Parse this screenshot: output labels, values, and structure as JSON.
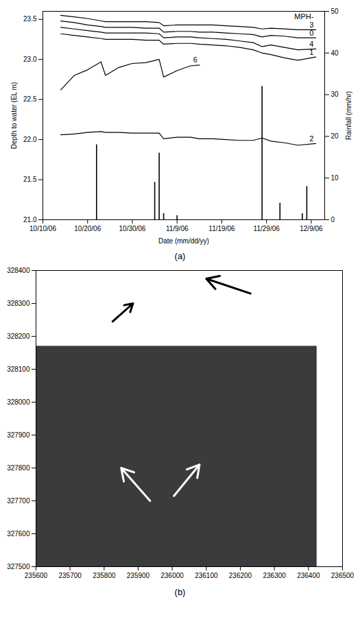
{
  "chart_data": [
    {
      "type": "line",
      "label": "(a)",
      "xlabel": "Date (mm/dd/yy)",
      "ylabel": "Depth to water (EL m)",
      "y2label": "Rainfall (mm/hr)",
      "annotations": [
        "MPH-"
      ],
      "x": [
        "2006-10-14",
        "2006-10-17",
        "2006-10-20",
        "2006-10-23",
        "2006-10-24",
        "2006-10-27",
        "2006-10-30",
        "2006-11-02",
        "2006-11-05",
        "2006-11-06",
        "2006-11-09",
        "2006-11-12",
        "2006-11-14",
        "2006-11-17",
        "2006-11-20",
        "2006-11-23",
        "2006-11-26",
        "2006-11-28",
        "2006-11-30",
        "2006-12-03",
        "2006-12-06",
        "2006-12-10"
      ],
      "xlim": [
        "2006-10-10",
        "2006-12-12"
      ],
      "xticks": [
        {
          "value": "2006-10-10",
          "label": "10/10/06"
        },
        {
          "value": "2006-10-20",
          "label": "10/20/06"
        },
        {
          "value": "2006-10-30",
          "label": "10/30/06"
        },
        {
          "value": "2006-11-09",
          "label": "11/9/06"
        },
        {
          "value": "2006-11-19",
          "label": "11/19/06"
        },
        {
          "value": "2006-11-29",
          "label": "11/29/06"
        },
        {
          "value": "2006-12-09",
          "label": "12/9/06"
        }
      ],
      "ylim": [
        21.0,
        23.6
      ],
      "yticks": [
        {
          "value": 21.0,
          "label": "21.0"
        },
        {
          "value": 21.5,
          "label": "21.5"
        },
        {
          "value": 22.0,
          "label": "22.0"
        },
        {
          "value": 22.5,
          "label": "22.5"
        },
        {
          "value": 23.0,
          "label": "23.0"
        },
        {
          "value": 23.5,
          "label": "23.5"
        }
      ],
      "y2lim": [
        0,
        50
      ],
      "y2ticks": [
        0,
        10,
        20,
        30,
        40,
        50
      ],
      "series": [
        {
          "name": "3",
          "color": "#000000",
          "values": [
            23.55,
            23.53,
            23.51,
            23.48,
            23.47,
            23.47,
            23.47,
            23.47,
            23.46,
            23.42,
            23.43,
            23.43,
            23.43,
            23.43,
            23.42,
            23.41,
            23.4,
            23.38,
            23.39,
            23.38,
            23.37,
            23.37
          ]
        },
        {
          "name": "0",
          "color": "#000000",
          "values": [
            23.48,
            23.46,
            23.43,
            23.41,
            23.4,
            23.4,
            23.4,
            23.39,
            23.39,
            23.34,
            23.35,
            23.35,
            23.34,
            23.34,
            23.33,
            23.32,
            23.31,
            23.28,
            23.3,
            23.29,
            23.27,
            23.27
          ]
        },
        {
          "name": "4",
          "color": "#000000",
          "values": [
            23.4,
            23.38,
            23.36,
            23.34,
            23.33,
            23.33,
            23.33,
            23.33,
            23.32,
            23.27,
            23.28,
            23.28,
            23.27,
            23.26,
            23.25,
            23.23,
            23.21,
            23.16,
            23.18,
            23.15,
            23.12,
            23.13
          ]
        },
        {
          "name": "1",
          "color": "#000000",
          "values": [
            23.32,
            23.3,
            23.28,
            23.26,
            23.25,
            23.25,
            23.25,
            23.24,
            23.24,
            23.19,
            23.2,
            23.2,
            23.19,
            23.18,
            23.17,
            23.15,
            23.12,
            23.08,
            23.06,
            23.02,
            22.99,
            23.03
          ]
        },
        {
          "name": "6",
          "color": "#000000",
          "values": [
            22.62,
            22.8,
            22.87,
            22.97,
            22.8,
            22.9,
            22.95,
            22.96,
            23.0,
            22.78,
            22.86,
            22.92,
            22.93,
            null,
            null,
            null,
            null,
            null,
            null,
            null,
            null,
            null
          ]
        },
        {
          "name": "2",
          "color": "#000000",
          "values": [
            22.06,
            22.07,
            22.09,
            22.1,
            22.09,
            22.09,
            22.08,
            22.08,
            22.08,
            22.01,
            22.03,
            22.03,
            22.01,
            22.01,
            22.0,
            21.99,
            21.99,
            22.02,
            21.98,
            21.96,
            21.93,
            21.95
          ]
        },
        {
          "type": "bar",
          "axis": "y2",
          "color": "#000000",
          "x": [
            "2006-10-22",
            "2006-11-04",
            "2006-11-05",
            "2006-11-06",
            "2006-11-09",
            "2006-11-28",
            "2006-12-02",
            "2006-12-07",
            "2006-12-08"
          ],
          "values": [
            18,
            9,
            16,
            1.5,
            1,
            32,
            4,
            1.5,
            8
          ]
        }
      ]
    },
    {
      "type": "map",
      "label": "(b)",
      "xlim": [
        235600,
        236500
      ],
      "xticks": [
        235600,
        235700,
        235800,
        235900,
        236000,
        236100,
        236200,
        236300,
        236400,
        236500
      ],
      "ylim": [
        327500,
        328400
      ],
      "yticks": [
        327500,
        327600,
        327700,
        327800,
        327900,
        328000,
        328100,
        328200,
        328300,
        328400
      ],
      "photo_extent": {
        "x": [
          235600,
          236425
        ],
        "y": [
          327500,
          328170
        ]
      },
      "flow_arrows": [
        {
          "x1": 235935,
          "y1": 327700,
          "x2": 235850,
          "y2": 327800,
          "color": "#ffffff"
        },
        {
          "x1": 236005,
          "y1": 327715,
          "x2": 236080,
          "y2": 327810,
          "color": "#ffffff"
        },
        {
          "x1": 235825,
          "y1": 328245,
          "x2": 235885,
          "y2": 328300,
          "color": "#000000"
        },
        {
          "x1": 236230,
          "y1": 328330,
          "x2": 236100,
          "y2": 328375,
          "color": "#000000"
        }
      ]
    }
  ]
}
